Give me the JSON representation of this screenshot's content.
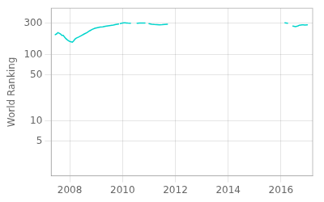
{
  "chart_data": {
    "type": "line",
    "ylabel": "World Ranking",
    "color": "#00d4cc",
    "log": "y",
    "grid": true,
    "xlim": [
      2007.3,
      2017.2
    ],
    "xticks": [
      2008,
      2010,
      2012,
      2014,
      2016
    ],
    "ylim": [
      1.5,
      500
    ],
    "yticks": [
      5,
      10,
      50,
      100,
      300
    ],
    "series": [
      {
        "x": [
          2007.45,
          2007.5,
          2007.55,
          2007.6,
          2007.65,
          2007.7,
          2007.75,
          2007.8,
          2007.85,
          2007.9,
          2007.95,
          2008.0,
          2008.05,
          2008.1,
          2008.15,
          2008.2,
          2008.25,
          2008.35,
          2008.45,
          2008.55,
          2008.65,
          2008.75,
          2008.85,
          2008.95,
          2009.05,
          2009.15,
          2009.25,
          2009.35,
          2009.45,
          2009.55,
          2009.65,
          2009.75,
          2009.85
        ],
        "values": [
          200,
          205,
          215,
          210,
          205,
          195,
          195,
          185,
          175,
          168,
          162,
          158,
          156,
          154,
          162,
          172,
          178,
          185,
          195,
          205,
          215,
          228,
          240,
          250,
          255,
          260,
          263,
          268,
          272,
          276,
          280,
          285,
          290
        ]
      },
      {
        "x": [
          2009.92,
          2009.96,
          2010.0,
          2010.05,
          2010.1,
          2010.15,
          2010.2,
          2010.3
        ],
        "values": [
          294,
          298,
          300,
          302,
          301,
          300,
          299,
          298
        ]
      },
      {
        "x": [
          2010.55,
          2010.65,
          2010.75,
          2010.85
        ],
        "values": [
          297,
          299,
          300,
          299
        ]
      },
      {
        "x": [
          2011.0,
          2011.1,
          2011.2,
          2011.3,
          2011.4,
          2011.5,
          2011.6,
          2011.7
        ],
        "values": [
          294,
          288,
          285,
          284,
          282,
          283,
          285,
          287
        ]
      },
      {
        "x": [
          2016.15,
          2016.2,
          2016.25
        ],
        "values": [
          302,
          300,
          298
        ]
      },
      {
        "x": [
          2016.45,
          2016.55,
          2016.6,
          2016.65,
          2016.7,
          2016.75,
          2016.8,
          2016.85,
          2016.9,
          2017.0
        ],
        "values": [
          270,
          265,
          268,
          272,
          278,
          280,
          282,
          281,
          280,
          281
        ]
      }
    ]
  }
}
